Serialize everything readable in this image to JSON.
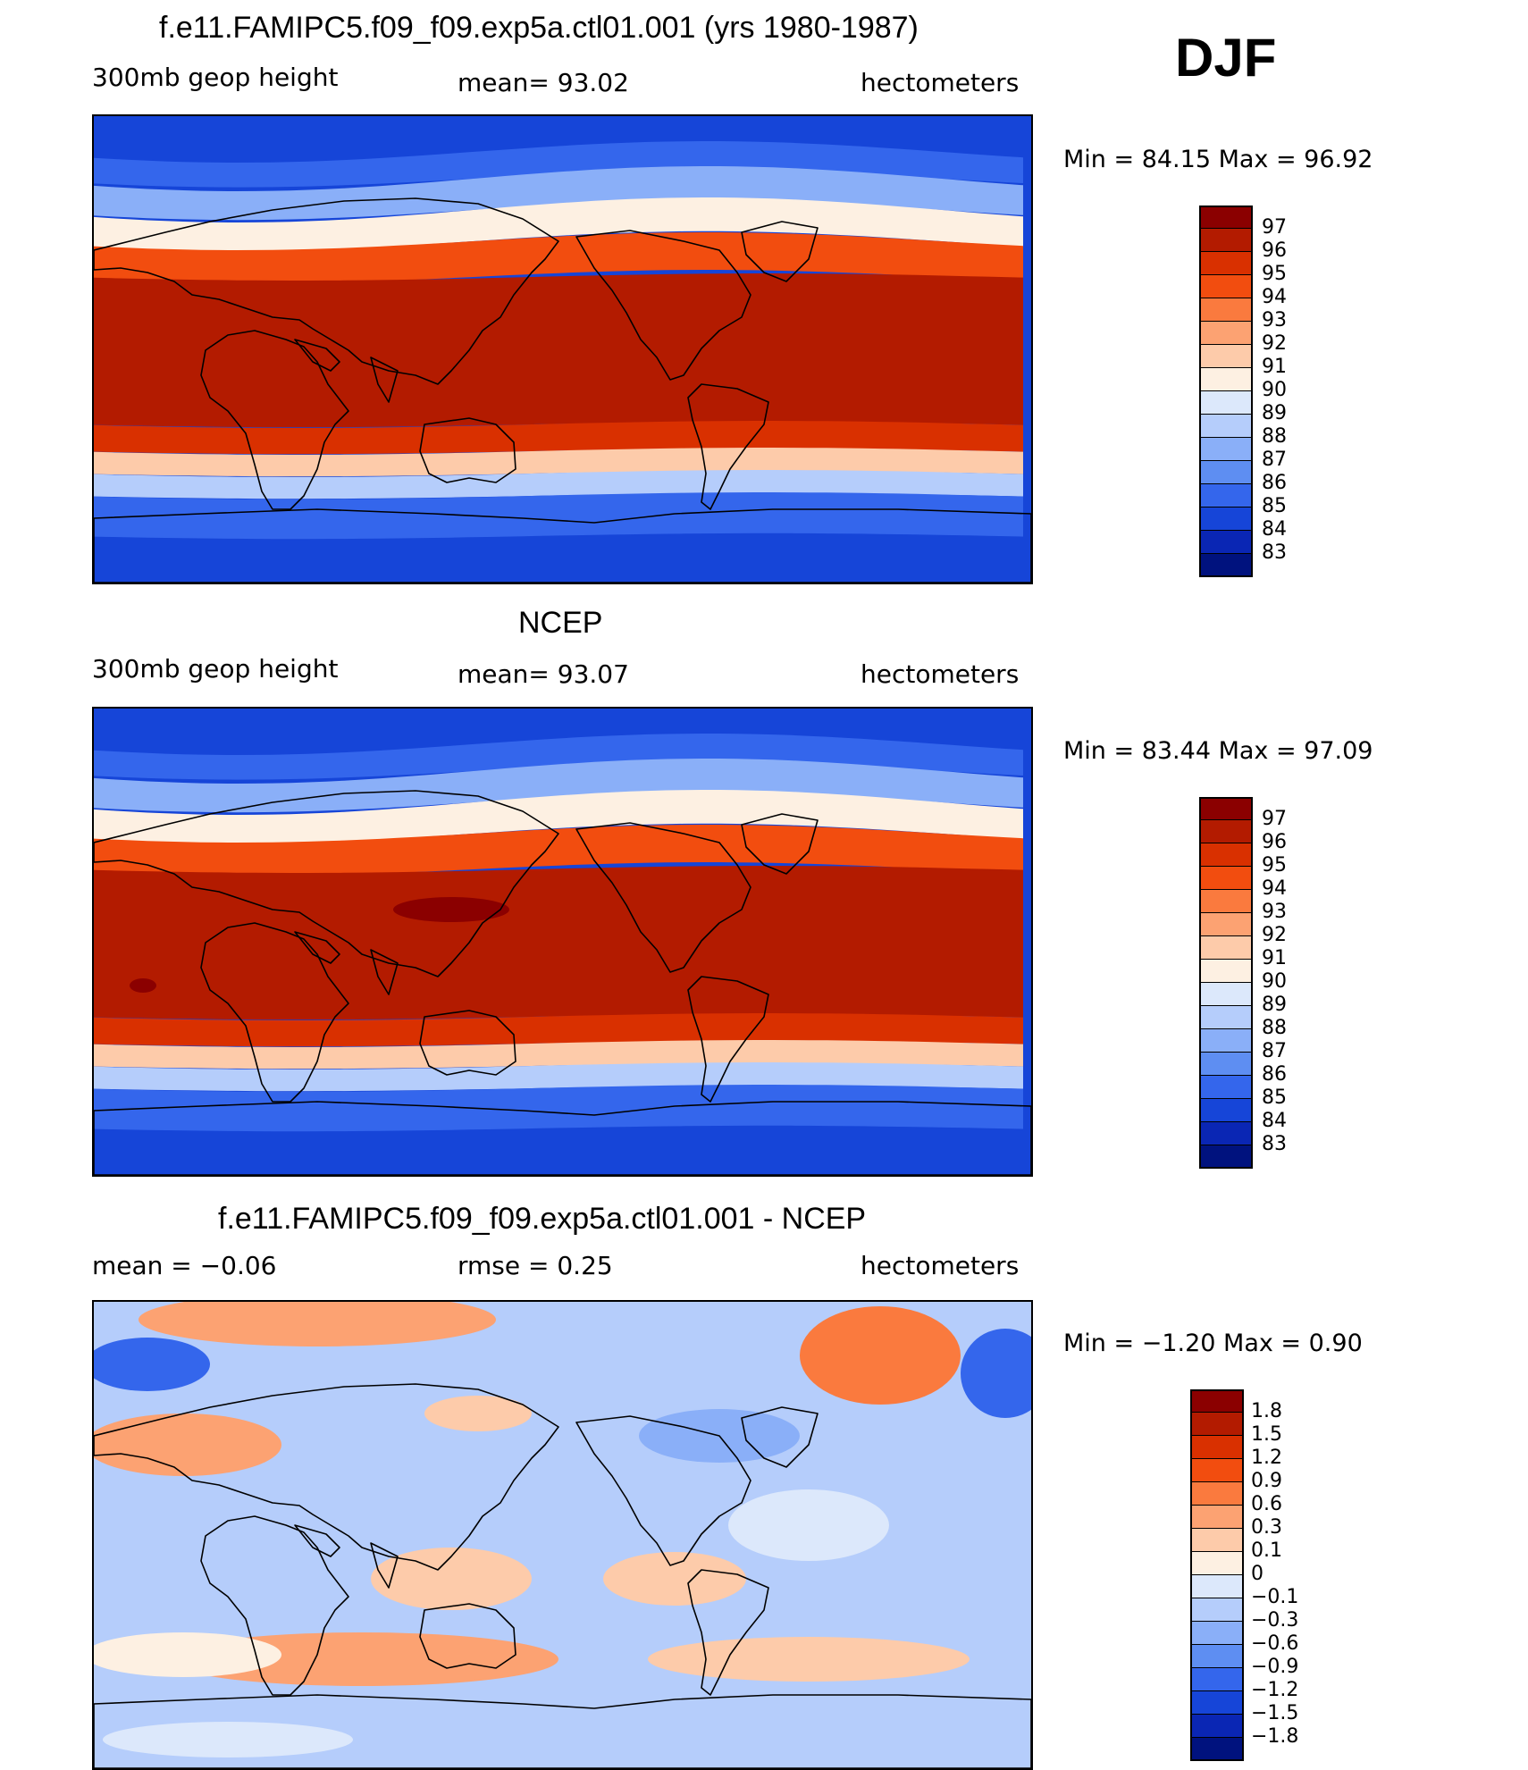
{
  "season": "DJF",
  "panels": [
    {
      "id": "model",
      "title": "f.e11.FAMIPC5.f09_f09.exp5a.ctl01.001 (yrs 1980-1987)",
      "left_label": "300mb  geop  height",
      "center_label": "mean=   93.02",
      "right_label": "hectometers",
      "minmax": "Min  =    84.15  Max  =    96.92",
      "colorbar": {
        "labels": [
          "97",
          "96",
          "95",
          "94",
          "93",
          "92",
          "91",
          "90",
          "89",
          "88",
          "87",
          "86",
          "85",
          "84",
          "83"
        ],
        "colors": [
          "#8b0000",
          "#b31b00",
          "#d93000",
          "#f24d0f",
          "#fa7a3e",
          "#fca272",
          "#fdcbaa",
          "#fdf0e2",
          "#dce8fb",
          "#b5cdfb",
          "#8aaff8",
          "#5e8ef2",
          "#3466ec",
          "#1645d8",
          "#0a26b4",
          "#00127e"
        ]
      },
      "field_colors": {
        "polar_n": "#1645d8",
        "subpolar_n": "#3466ec",
        "mid_n": "#8aaff8",
        "jet_n": "#fdf0e2",
        "warm_n": "#f24d0f",
        "tropics": "#b31b00",
        "warm_s": "#d93000",
        "jet_s": "#fdcbaa",
        "mid_s": "#b5cdfb",
        "subpolar_s": "#3466ec",
        "polar_s": "#1645d8"
      }
    },
    {
      "id": "obs",
      "title": "NCEP",
      "left_label": "300mb  geop  height",
      "center_label": "mean=   93.07",
      "right_label": "hectometers",
      "minmax": "Min  =    83.44  Max  =    97.09",
      "colorbar": {
        "labels": [
          "97",
          "96",
          "95",
          "94",
          "93",
          "92",
          "91",
          "90",
          "89",
          "88",
          "87",
          "86",
          "85",
          "84",
          "83"
        ],
        "colors": [
          "#8b0000",
          "#b31b00",
          "#d93000",
          "#f24d0f",
          "#fa7a3e",
          "#fca272",
          "#fdcbaa",
          "#fdf0e2",
          "#dce8fb",
          "#b5cdfb",
          "#8aaff8",
          "#5e8ef2",
          "#3466ec",
          "#1645d8",
          "#0a26b4",
          "#00127e"
        ]
      },
      "field_colors": {
        "polar_n": "#1645d8",
        "subpolar_n": "#3466ec",
        "mid_n": "#8aaff8",
        "jet_n": "#fdf0e2",
        "warm_n": "#f24d0f",
        "tropics": "#b31b00",
        "warm_s": "#d93000",
        "jet_s": "#fdcbaa",
        "mid_s": "#b5cdfb",
        "subpolar_s": "#3466ec",
        "polar_s": "#1645d8",
        "max_blob": "#8b0000"
      }
    },
    {
      "id": "diff",
      "title": "f.e11.FAMIPC5.f09_f09.exp5a.ctl01.001 - NCEP",
      "left_label": "mean  =    −0.06",
      "center_label": "rmse  =     0.25",
      "right_label": "hectometers",
      "minmax": "Min  =    −1.20  Max  =      0.90",
      "colorbar": {
        "labels": [
          "1.8",
          "1.5",
          "1.2",
          "0.9",
          "0.6",
          "0.3",
          "0.1",
          "0",
          "−0.1",
          "−0.3",
          "−0.6",
          "−0.9",
          "−1.2",
          "−1.5",
          "−1.8"
        ],
        "colors": [
          "#8b0000",
          "#b31b00",
          "#d93000",
          "#f24d0f",
          "#fa7a3e",
          "#fca272",
          "#fdcbaa",
          "#fdf0e2",
          "#dce8fb",
          "#b5cdfb",
          "#8aaff8",
          "#5e8ef2",
          "#3466ec",
          "#1645d8",
          "#0a26b4",
          "#00127e"
        ]
      },
      "field_colors": {
        "base": "#b5cdfb",
        "light_blue": "#dce8fb",
        "mid_blue": "#8aaff8",
        "strong_blue": "#3466ec",
        "light_red": "#fdcbaa",
        "mid_red": "#fca272",
        "strong_red": "#fa7a3e",
        "cream": "#fdf0e2"
      }
    }
  ]
}
